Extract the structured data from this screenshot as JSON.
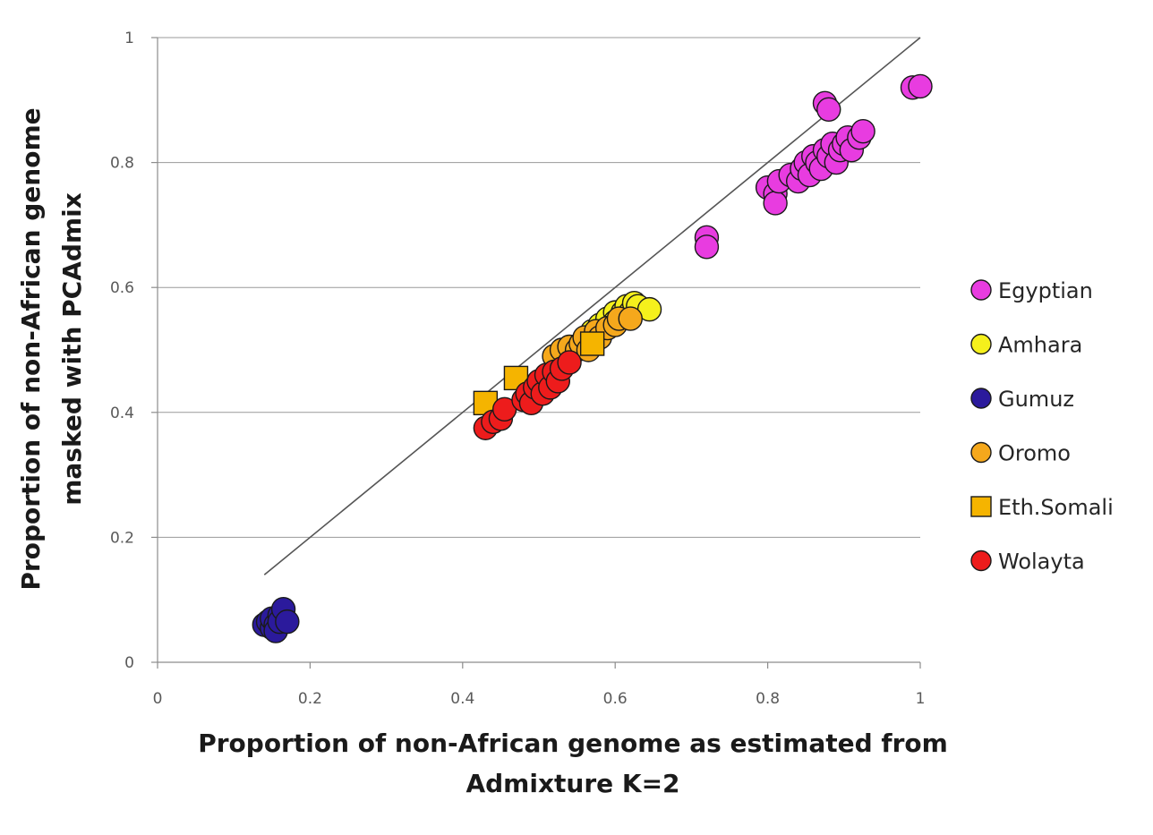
{
  "chart_data": {
    "type": "scatter",
    "title": "",
    "xlabel_lines": [
      "Proportion of non-African genome as estimated from",
      "Admixture K=2"
    ],
    "ylabel_lines": [
      "Proportion of non-African genome",
      "masked with PCAdmix"
    ],
    "xlim": [
      0,
      1
    ],
    "ylim": [
      0,
      1
    ],
    "x_ticks": [
      "0",
      "0.2",
      "0.4",
      "0.6",
      "0.8",
      "1"
    ],
    "y_ticks": [
      "0",
      "0.2",
      "0.4",
      "0.6",
      "0.8",
      "1"
    ],
    "grid": "horizontal",
    "legend_position": "right",
    "reference_line": {
      "x": [
        0.14,
        1.0
      ],
      "y": [
        0.14,
        1.0
      ]
    },
    "series": [
      {
        "name": "Egyptian",
        "marker": "circle",
        "color": "#e83ce0",
        "points": [
          [
            0.72,
            0.68
          ],
          [
            0.72,
            0.665
          ],
          [
            0.8,
            0.76
          ],
          [
            0.81,
            0.75
          ],
          [
            0.81,
            0.735
          ],
          [
            0.815,
            0.77
          ],
          [
            0.83,
            0.78
          ],
          [
            0.84,
            0.77
          ],
          [
            0.845,
            0.79
          ],
          [
            0.85,
            0.8
          ],
          [
            0.855,
            0.78
          ],
          [
            0.86,
            0.81
          ],
          [
            0.865,
            0.8
          ],
          [
            0.87,
            0.79
          ],
          [
            0.875,
            0.82
          ],
          [
            0.88,
            0.81
          ],
          [
            0.885,
            0.83
          ],
          [
            0.89,
            0.8
          ],
          [
            0.895,
            0.82
          ],
          [
            0.9,
            0.83
          ],
          [
            0.905,
            0.84
          ],
          [
            0.91,
            0.82
          ],
          [
            0.92,
            0.84
          ],
          [
            0.925,
            0.85
          ],
          [
            0.875,
            0.895
          ],
          [
            0.88,
            0.885
          ],
          [
            0.99,
            0.92
          ],
          [
            1.0,
            0.922
          ]
        ]
      },
      {
        "name": "Amhara",
        "marker": "circle",
        "color": "#f5f01c",
        "points": [
          [
            0.57,
            0.53
          ],
          [
            0.58,
            0.54
          ],
          [
            0.59,
            0.55
          ],
          [
            0.6,
            0.56
          ],
          [
            0.6,
            0.545
          ],
          [
            0.61,
            0.56
          ],
          [
            0.615,
            0.57
          ],
          [
            0.62,
            0.56
          ],
          [
            0.625,
            0.575
          ],
          [
            0.63,
            0.57
          ],
          [
            0.645,
            0.565
          ]
        ]
      },
      {
        "name": "Gumuz",
        "marker": "circle",
        "color": "#2b1a9c",
        "points": [
          [
            0.14,
            0.06
          ],
          [
            0.145,
            0.065
          ],
          [
            0.15,
            0.055
          ],
          [
            0.15,
            0.07
          ],
          [
            0.155,
            0.06
          ],
          [
            0.155,
            0.05
          ],
          [
            0.16,
            0.075
          ],
          [
            0.16,
            0.065
          ],
          [
            0.165,
            0.085
          ],
          [
            0.17,
            0.065
          ]
        ]
      },
      {
        "name": "Oromo",
        "marker": "circle",
        "color": "#f5a81c",
        "points": [
          [
            0.52,
            0.49
          ],
          [
            0.53,
            0.5
          ],
          [
            0.54,
            0.505
          ],
          [
            0.55,
            0.5
          ],
          [
            0.555,
            0.51
          ],
          [
            0.56,
            0.52
          ],
          [
            0.565,
            0.5
          ],
          [
            0.575,
            0.53
          ],
          [
            0.58,
            0.52
          ],
          [
            0.59,
            0.535
          ],
          [
            0.6,
            0.54
          ],
          [
            0.605,
            0.55
          ],
          [
            0.62,
            0.55
          ]
        ]
      },
      {
        "name": "Eth.Somali",
        "marker": "square",
        "color": "#f5b400",
        "points": [
          [
            0.43,
            0.415
          ],
          [
            0.47,
            0.455
          ],
          [
            0.57,
            0.51
          ]
        ]
      },
      {
        "name": "Wolayta",
        "marker": "circle",
        "color": "#ed1c1c",
        "points": [
          [
            0.43,
            0.375
          ],
          [
            0.44,
            0.385
          ],
          [
            0.45,
            0.39
          ],
          [
            0.455,
            0.405
          ],
          [
            0.48,
            0.42
          ],
          [
            0.485,
            0.43
          ],
          [
            0.49,
            0.415
          ],
          [
            0.495,
            0.44
          ],
          [
            0.5,
            0.45
          ],
          [
            0.505,
            0.43
          ],
          [
            0.51,
            0.46
          ],
          [
            0.515,
            0.44
          ],
          [
            0.52,
            0.465
          ],
          [
            0.525,
            0.45
          ],
          [
            0.53,
            0.47
          ],
          [
            0.54,
            0.48
          ]
        ]
      }
    ]
  }
}
